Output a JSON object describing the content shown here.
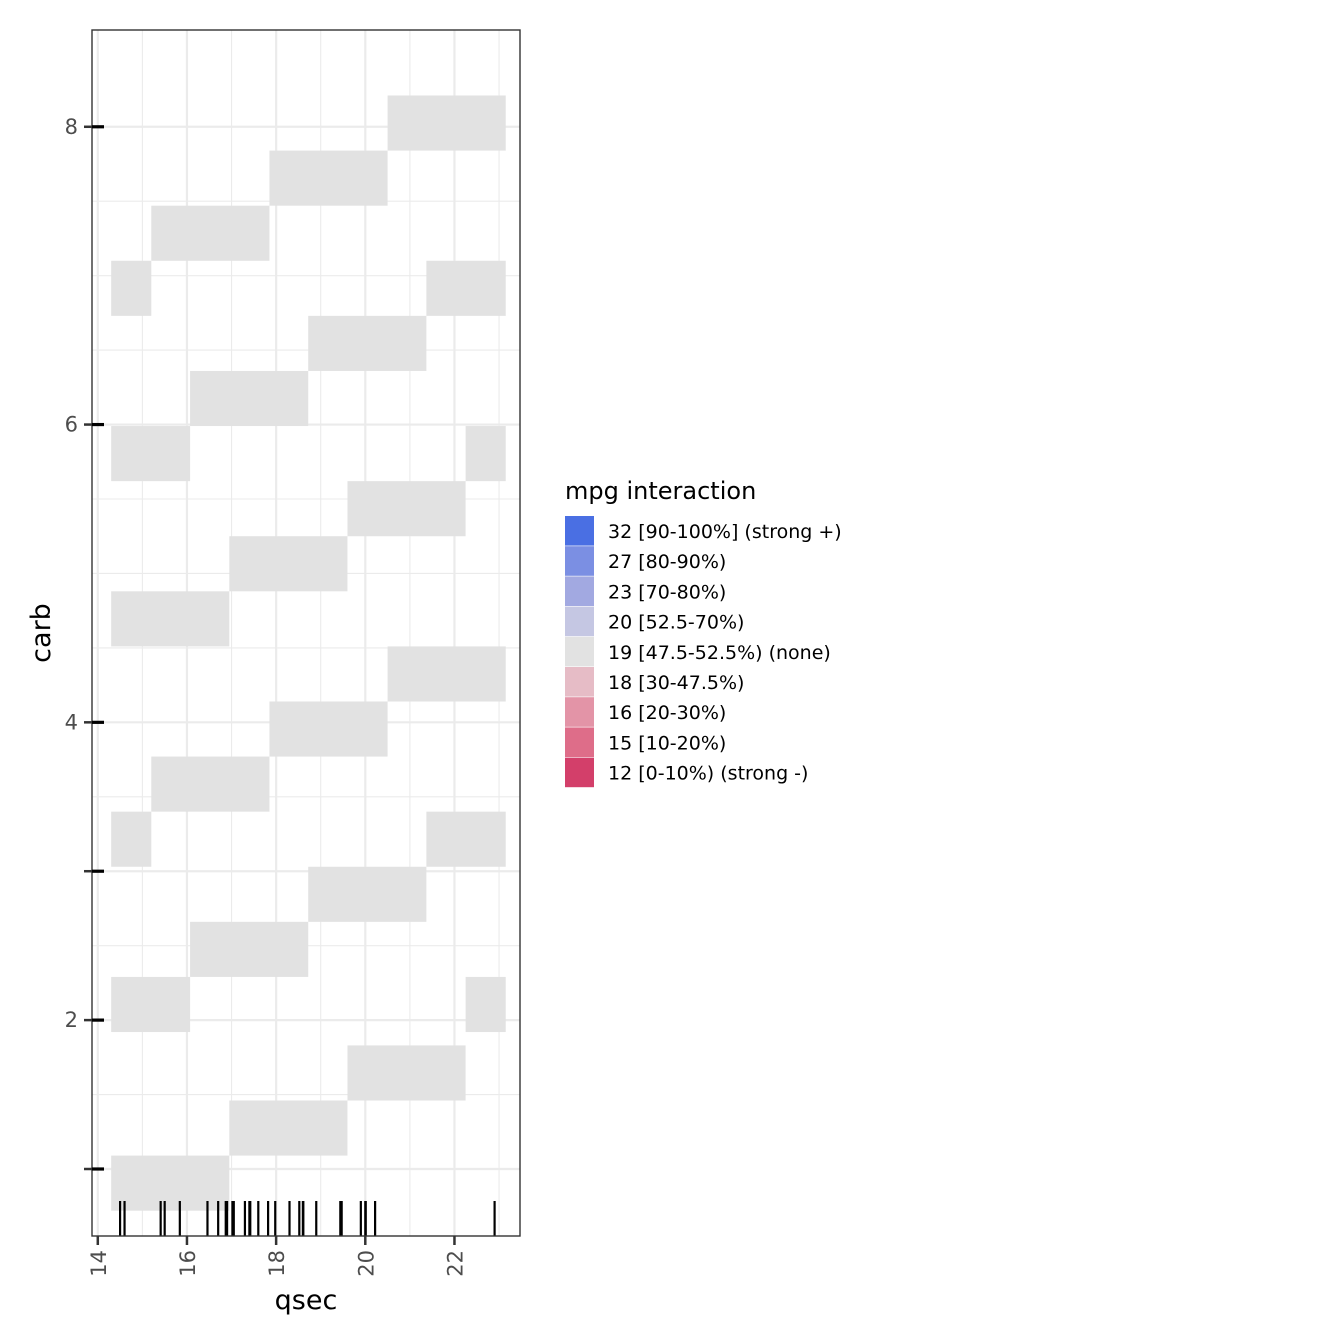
{
  "chart_data": {
    "type": "heatmap",
    "title": "",
    "xlabel": "qsec",
    "ylabel": "carb",
    "xlim": [
      13.87,
      23.47
    ],
    "ylim": [
      0.55,
      8.65
    ],
    "x_ticks": [
      14,
      16,
      18,
      20,
      22
    ],
    "x_tick_labels": [
      "14",
      "16",
      "18",
      "20",
      "22"
    ],
    "y_ticks": [
      1,
      2,
      3,
      4,
      6,
      8
    ],
    "y_tick_labels": [
      "",
      "2",
      "",
      "4",
      "6",
      "8"
    ],
    "grid": true,
    "legend": {
      "title": "mpg interaction",
      "position": "right",
      "entries": [
        {
          "label": "32 [90-100%] (strong +)",
          "color": "#4a6fe3"
        },
        {
          "label": "27 [80-90%)",
          "color": "#7b8fe3"
        },
        {
          "label": "23 [70-80%)",
          "color": "#a2a9e1"
        },
        {
          "label": "20 [52.5-70%)",
          "color": "#c5c7e3"
        },
        {
          "label": "19 [47.5-52.5%) (none)",
          "color": "#e2e2e2"
        },
        {
          "label": "18 [30-47.5%)",
          "color": "#e6bcc6"
        },
        {
          "label": "16 [20-30%)",
          "color": "#e394a7"
        },
        {
          "label": "15 [10-20%)",
          "color": "#de6d89"
        },
        {
          "label": "12 [0-10%) (strong -)",
          "color": "#d33f6a"
        }
      ]
    },
    "tiles": [
      {
        "x0": 14.3,
        "x1": 16.95,
        "y0": 0.72,
        "y1": 1.09,
        "value": 19
      },
      {
        "x0": 16.95,
        "x1": 19.6,
        "y0": 1.09,
        "y1": 1.46,
        "value": 19
      },
      {
        "x0": 19.6,
        "x1": 22.25,
        "y0": 1.46,
        "y1": 1.83,
        "value": 19
      },
      {
        "x0": 14.3,
        "x1": 16.07,
        "y0": 1.92,
        "y1": 2.29,
        "value": 19
      },
      {
        "x0": 22.25,
        "x1": 23.15,
        "y0": 1.92,
        "y1": 2.29,
        "value": 19
      },
      {
        "x0": 16.07,
        "x1": 18.72,
        "y0": 2.29,
        "y1": 2.66,
        "value": 19
      },
      {
        "x0": 18.72,
        "x1": 21.37,
        "y0": 2.66,
        "y1": 3.03,
        "value": 19
      },
      {
        "x0": 14.3,
        "x1": 15.2,
        "y0": 3.03,
        "y1": 3.4,
        "value": 19
      },
      {
        "x0": 21.37,
        "x1": 23.15,
        "y0": 3.03,
        "y1": 3.4,
        "value": 19
      },
      {
        "x0": 15.2,
        "x1": 17.85,
        "y0": 3.4,
        "y1": 3.77,
        "value": 19
      },
      {
        "x0": 17.85,
        "x1": 20.5,
        "y0": 3.77,
        "y1": 4.14,
        "value": 19
      },
      {
        "x0": 20.5,
        "x1": 23.15,
        "y0": 4.14,
        "y1": 4.51,
        "value": 19
      },
      {
        "x0": 14.3,
        "x1": 16.95,
        "y0": 4.51,
        "y1": 4.88,
        "value": 19
      },
      {
        "x0": 16.95,
        "x1": 19.6,
        "y0": 4.88,
        "y1": 5.25,
        "value": 19
      },
      {
        "x0": 19.6,
        "x1": 22.25,
        "y0": 5.25,
        "y1": 5.62,
        "value": 19
      },
      {
        "x0": 14.3,
        "x1": 16.07,
        "y0": 5.62,
        "y1": 5.99,
        "value": 19
      },
      {
        "x0": 22.25,
        "x1": 23.15,
        "y0": 5.62,
        "y1": 5.99,
        "value": 19
      },
      {
        "x0": 16.07,
        "x1": 18.72,
        "y0": 5.99,
        "y1": 6.36,
        "value": 19
      },
      {
        "x0": 18.72,
        "x1": 21.37,
        "y0": 6.36,
        "y1": 6.73,
        "value": 19
      },
      {
        "x0": 14.3,
        "x1": 15.2,
        "y0": 6.73,
        "y1": 7.1,
        "value": 19
      },
      {
        "x0": 21.37,
        "x1": 23.15,
        "y0": 6.73,
        "y1": 7.1,
        "value": 19
      },
      {
        "x0": 15.2,
        "x1": 17.85,
        "y0": 7.1,
        "y1": 7.47,
        "value": 19
      },
      {
        "x0": 17.85,
        "x1": 20.5,
        "y0": 7.47,
        "y1": 7.84,
        "value": 19
      },
      {
        "x0": 20.5,
        "x1": 23.15,
        "y0": 7.84,
        "y1": 8.21,
        "value": 19
      }
    ],
    "rug_x": [
      14.5,
      14.6,
      15.41,
      15.5,
      15.84,
      16.46,
      16.7,
      16.87,
      16.9,
      17.02,
      17.05,
      17.3,
      17.4,
      17.42,
      17.6,
      17.82,
      17.98,
      18.3,
      18.52,
      18.6,
      18.61,
      18.9,
      19.44,
      19.47,
      19.9,
      20.0,
      20.01,
      20.22,
      22.9
    ]
  }
}
